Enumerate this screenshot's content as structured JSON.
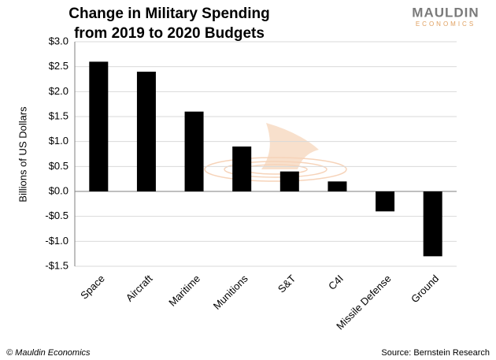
{
  "chart_data": {
    "type": "bar",
    "title": [
      "Change in Military Spending",
      "from 2019 to 2020 Budgets"
    ],
    "logo": [
      "MAULDIN",
      "ECONOMICS"
    ],
    "y_label": "Billions of US Dollars",
    "copyright": "© Mauldin Economics",
    "source": "Source: Bernstein Research",
    "categories": [
      "Space",
      "Aircraft",
      "Maritime",
      "Munitions",
      "S&T",
      "C4I",
      "Missile Defense",
      "Ground"
    ],
    "values": [
      2.6,
      2.4,
      1.6,
      0.9,
      0.4,
      0.2,
      -0.4,
      -1.3
    ],
    "color": "#000000",
    "ylim": [
      -1.5,
      3.0
    ],
    "yticks": [
      {
        "value": 3.0,
        "label": "$3.0"
      },
      {
        "value": 2.5,
        "label": "$2.5"
      },
      {
        "value": 2.0,
        "label": "$2.0"
      },
      {
        "value": 1.5,
        "label": "$1.5"
      },
      {
        "value": 1.0,
        "label": "$1.0"
      },
      {
        "value": 0.5,
        "label": "$0.5"
      },
      {
        "value": 0.0,
        "label": "$0.0"
      },
      {
        "value": -0.5,
        "label": "-$0.5"
      },
      {
        "value": -1.0,
        "label": "-$1.0"
      },
      {
        "value": -1.5,
        "label": "-$1.5"
      }
    ],
    "grid": true
  }
}
